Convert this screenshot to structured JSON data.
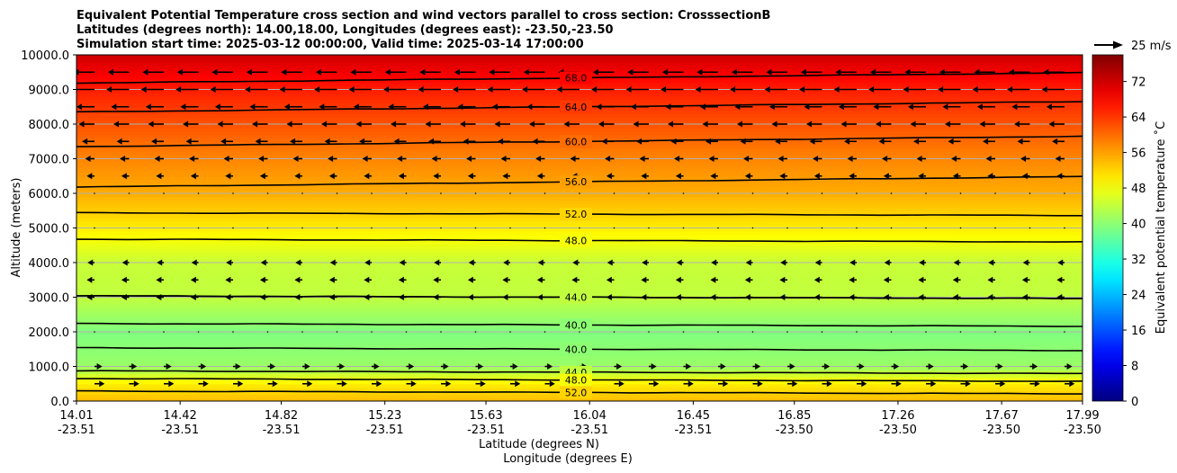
{
  "chart_data": {
    "type": "contourf",
    "title_lines": [
      "Equivalent Potential Temperature cross section and wind vectors parallel to cross section: CrosssectionB",
      "Latitudes (degrees north): 14.00,18.00, Longitudes (degrees east): -23.50,-23.50",
      "Simulation start time: 2025-03-12 00:00:00, Valid time: 2025-03-14 17:00:00"
    ],
    "xlabel_lines": [
      "Latitude (degrees N)",
      "Longitude (degrees E)"
    ],
    "ylabel": "Altitude (meters)",
    "x_ticks": [
      {
        "lat": "14.01",
        "lon": "-23.51"
      },
      {
        "lat": "14.42",
        "lon": "-23.51"
      },
      {
        "lat": "14.82",
        "lon": "-23.51"
      },
      {
        "lat": "15.23",
        "lon": "-23.51"
      },
      {
        "lat": "15.63",
        "lon": "-23.51"
      },
      {
        "lat": "16.04",
        "lon": "-23.51"
      },
      {
        "lat": "16.45",
        "lon": "-23.51"
      },
      {
        "lat": "16.85",
        "lon": "-23.50"
      },
      {
        "lat": "17.26",
        "lon": "-23.50"
      },
      {
        "lat": "17.67",
        "lon": "-23.50"
      },
      {
        "lat": "17.99",
        "lon": "-23.50"
      }
    ],
    "xlim": [
      14.01,
      17.99
    ],
    "y_ticks": [
      "0.0",
      "1000.0",
      "2000.0",
      "3000.0",
      "4000.0",
      "5000.0",
      "6000.0",
      "7000.0",
      "8000.0",
      "9000.0",
      "10000.0"
    ],
    "ylim": [
      0,
      10000
    ],
    "colorbar": {
      "label": "Equivalent potential temperature $^\\circ$C",
      "label_display": "Equivalent potential temperature ˚C",
      "ticks": [
        "0",
        "8",
        "16",
        "24",
        "32",
        "40",
        "48",
        "56",
        "64",
        "72"
      ],
      "range": [
        0,
        78
      ],
      "colormap": "jet"
    },
    "contour_levels": [
      {
        "level": 40.0,
        "label": "40.0"
      },
      {
        "level": 44.0,
        "label": "44.0"
      },
      {
        "level": 48.0,
        "label": "48.0"
      },
      {
        "level": 52.0,
        "label": "52.0"
      },
      {
        "level": 56.0,
        "label": "56.0"
      },
      {
        "level": 60.0,
        "label": "60.0"
      },
      {
        "level": 64.0,
        "label": "64.0"
      },
      {
        "level": 68.0,
        "label": "68.0"
      }
    ],
    "profile": [
      {
        "alt": 0,
        "theta_e": 54
      },
      {
        "alt": 500,
        "theta_e": 50
      },
      {
        "alt": 1000,
        "theta_e": 41
      },
      {
        "alt": 2000,
        "theta_e": 39
      },
      {
        "alt": 3000,
        "theta_e": 44
      },
      {
        "alt": 4000,
        "theta_e": 44.5
      },
      {
        "alt": 5000,
        "theta_e": 50
      },
      {
        "alt": 6000,
        "theta_e": 55
      },
      {
        "alt": 7000,
        "theta_e": 58
      },
      {
        "alt": 8000,
        "theta_e": 62
      },
      {
        "alt": 9000,
        "theta_e": 66
      },
      {
        "alt": 10000,
        "theta_e": 72
      }
    ],
    "wind_key": {
      "label": "25 m/s",
      "speed": 25
    },
    "wind_profile": [
      {
        "alt": 9500,
        "speed": 20
      },
      {
        "alt": 9000,
        "speed": 22
      },
      {
        "alt": 8500,
        "speed": 16
      },
      {
        "alt": 8000,
        "speed": 13
      },
      {
        "alt": 7500,
        "speed": 9
      },
      {
        "alt": 7000,
        "speed": 5
      },
      {
        "alt": 6500,
        "speed": 3
      },
      {
        "alt": 6000,
        "speed": 1
      },
      {
        "alt": 5000,
        "speed": 1
      },
      {
        "alt": 4000,
        "speed": 2
      },
      {
        "alt": 3500,
        "speed": 3
      },
      {
        "alt": 3000,
        "speed": 3
      },
      {
        "alt": 2000,
        "speed": -1
      },
      {
        "alt": 1000,
        "speed": -3
      },
      {
        "alt": 500,
        "speed": -6
      }
    ],
    "grid": true
  }
}
